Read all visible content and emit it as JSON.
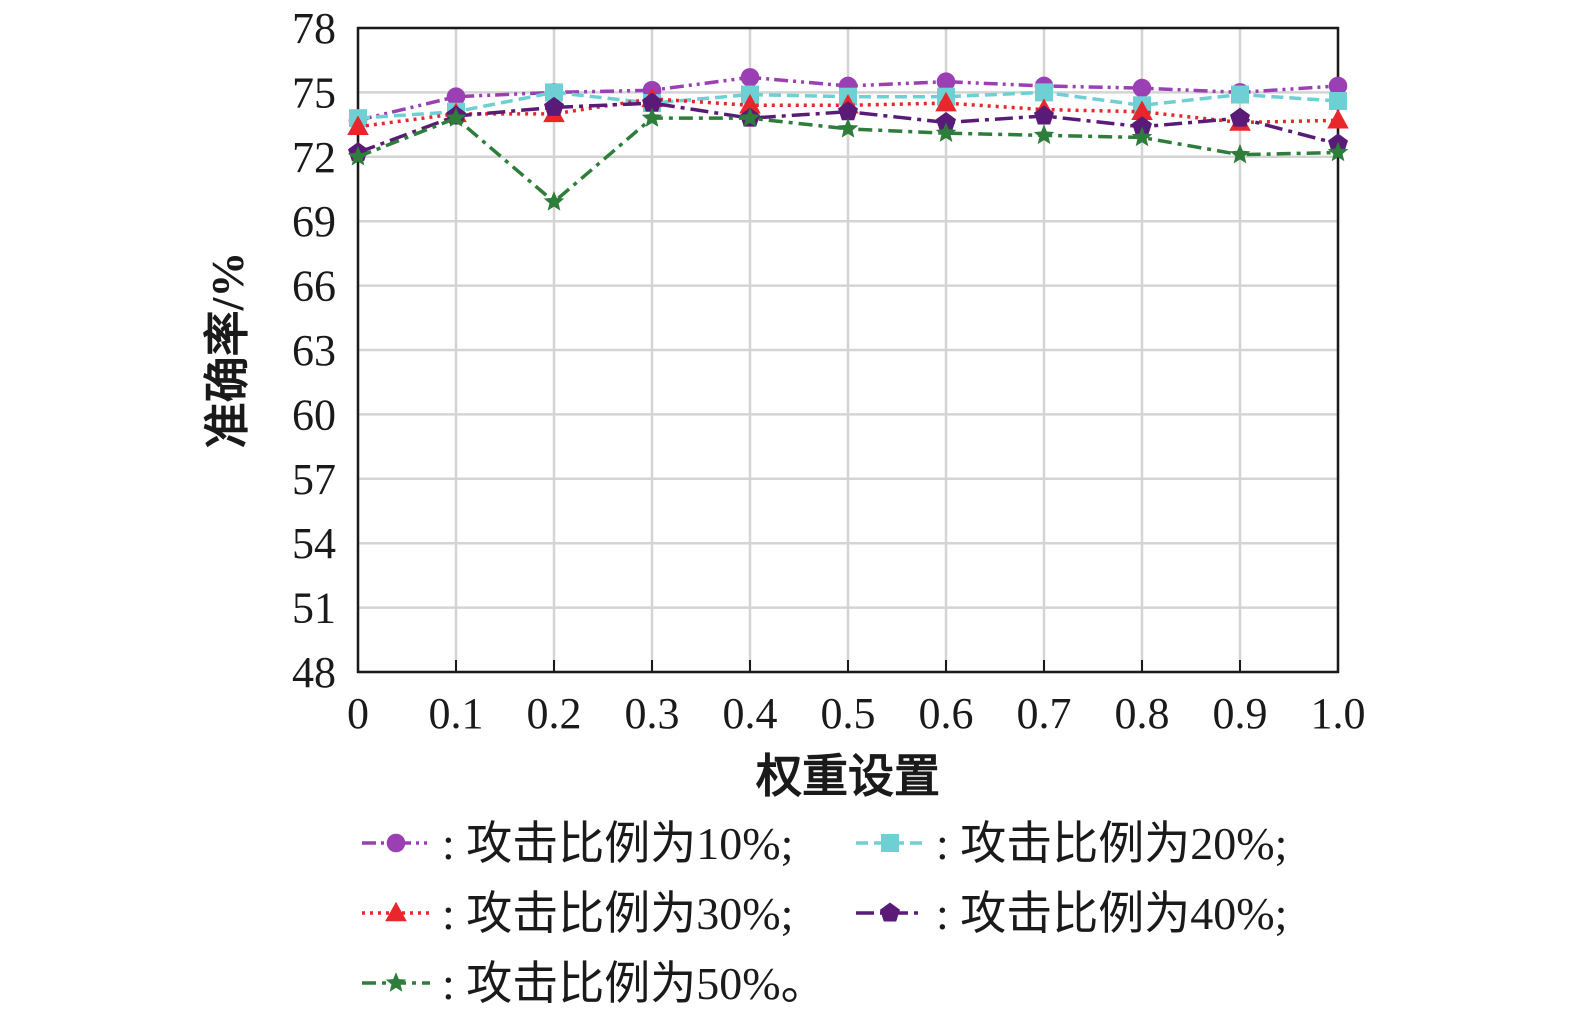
{
  "chart_data": {
    "type": "line",
    "xlabel": "权重设置",
    "ylabel": "准确率/%",
    "x": [
      0,
      0.1,
      0.2,
      0.3,
      0.4,
      0.5,
      0.6,
      0.7,
      0.8,
      0.9,
      1.0
    ],
    "x_tick_labels": [
      "0",
      "0.1",
      "0.2",
      "0.3",
      "0.4",
      "0.5",
      "0.6",
      "0.7",
      "0.8",
      "0.9",
      "1.0"
    ],
    "y_ticks": [
      48,
      51,
      54,
      57,
      60,
      63,
      66,
      69,
      72,
      75,
      78
    ],
    "ylim": [
      48,
      78
    ],
    "xlim": [
      0,
      1.0
    ],
    "grid": true,
    "legend_position": "bottom",
    "series": [
      {
        "name": ": 攻击比例为10%;",
        "color": "#9b3fb5",
        "marker": "circle",
        "dash": "dash-dot-dot",
        "values": [
          73.7,
          74.8,
          75.0,
          75.1,
          75.7,
          75.3,
          75.5,
          75.3,
          75.2,
          75.0,
          75.3
        ]
      },
      {
        "name": ": 攻击比例为20%;",
        "color": "#6fd0d4",
        "marker": "square",
        "dash": "dash",
        "values": [
          73.8,
          74.1,
          75.0,
          74.5,
          74.9,
          74.8,
          74.8,
          75.0,
          74.4,
          74.9,
          74.6
        ]
      },
      {
        "name": ": 攻击比例为30%;",
        "color": "#e8262b",
        "marker": "triangle",
        "dash": "dot",
        "values": [
          73.4,
          74.0,
          74.0,
          74.7,
          74.4,
          74.4,
          74.5,
          74.2,
          74.1,
          73.6,
          73.7
        ]
      },
      {
        "name": ": 攻击比例为40%;",
        "color": "#5a1a78",
        "marker": "pentagon",
        "dash": "long-dash-dot",
        "values": [
          72.2,
          73.9,
          74.3,
          74.5,
          73.8,
          74.1,
          73.6,
          73.9,
          73.4,
          73.8,
          72.6
        ]
      },
      {
        "name": ": 攻击比例为50%。",
        "color": "#2e7d3a",
        "marker": "star",
        "dash": "dash-dot",
        "values": [
          72.0,
          73.8,
          69.9,
          73.8,
          73.8,
          73.3,
          73.1,
          73.0,
          72.9,
          72.1,
          72.2
        ]
      }
    ]
  }
}
